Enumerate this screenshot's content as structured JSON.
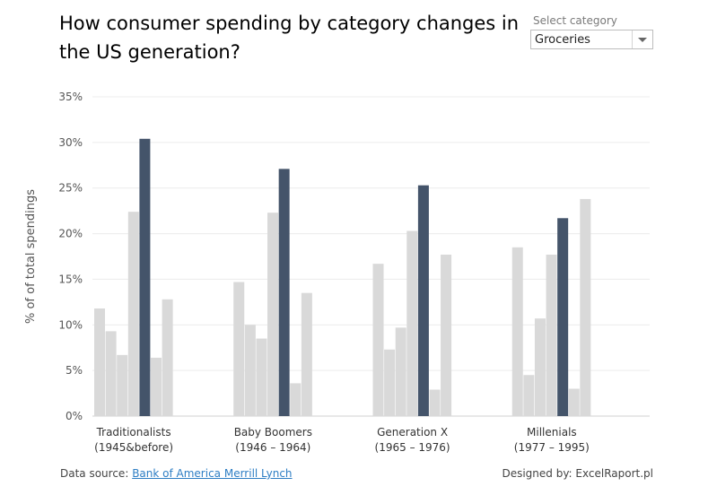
{
  "title": "How consumer spending by category changes in the US generation?",
  "selector": {
    "label": "Select category",
    "value": "Groceries"
  },
  "footer": {
    "source_prefix": "Data source:",
    "source_link": "Bank of America Merrill Lynch",
    "designed_by": "Designed by: ExcelRaport.pl"
  },
  "colors": {
    "highlight": "#44546a",
    "other": "#d9d9d9",
    "grid": "#ececec",
    "axis": "#d0d0d0"
  },
  "chart_data": {
    "type": "bar",
    "ylabel": "% of of total spendings",
    "ylim": [
      0,
      35
    ],
    "yticks": [
      "0%",
      "5%",
      "10%",
      "15%",
      "20%",
      "25%",
      "30%",
      "35%"
    ],
    "ytick_values": [
      0,
      5,
      10,
      15,
      20,
      25,
      30,
      35
    ],
    "grid": true,
    "groups": [
      {
        "label1": "Traditionalists",
        "label2": "(1945&before)",
        "values": [
          11.8,
          9.3,
          6.7,
          22.4,
          30.4,
          6.4,
          12.8
        ]
      },
      {
        "label1": "Baby Boomers",
        "label2": "(1946 – 1964)",
        "values": [
          14.7,
          10.0,
          8.5,
          22.3,
          27.1,
          3.6,
          13.5
        ]
      },
      {
        "label1": "Generation X",
        "label2": "(1965 – 1976)",
        "values": [
          16.7,
          7.3,
          9.7,
          20.3,
          25.3,
          2.9,
          17.7
        ]
      },
      {
        "label1": "Millenials",
        "label2": "(1977 – 1995)",
        "values": [
          18.5,
          4.5,
          10.7,
          17.7,
          21.7,
          3.0,
          23.8
        ]
      }
    ],
    "highlight_index": 4
  }
}
